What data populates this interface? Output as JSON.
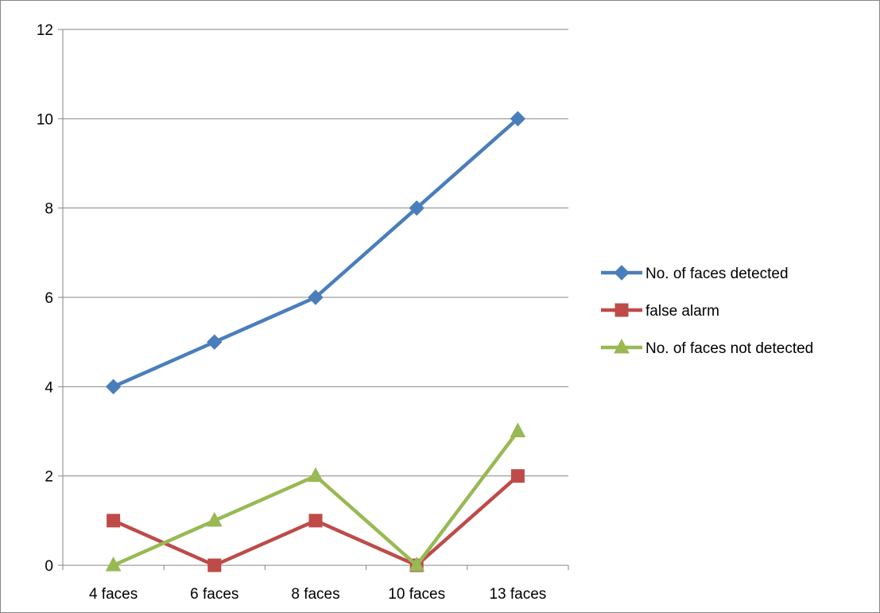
{
  "chart_data": {
    "type": "line",
    "categories": [
      "4 faces",
      "6 faces",
      "8 faces",
      "10 faces",
      "13 faces"
    ],
    "ylim": [
      0,
      12
    ],
    "yticks": [
      0,
      2,
      4,
      6,
      8,
      10,
      12
    ],
    "grid": true,
    "legend_position": "right",
    "series": [
      {
        "name": "No. of faces detected",
        "values": [
          4,
          5,
          6,
          8,
          10
        ],
        "color": "#4A7EBB",
        "marker": "diamond"
      },
      {
        "name": "false alarm",
        "values": [
          1,
          0,
          1,
          0,
          2
        ],
        "color": "#BE4B48",
        "marker": "square"
      },
      {
        "name": "No. of faces not detected",
        "values": [
          0,
          1,
          2,
          0,
          3
        ],
        "color": "#98B954",
        "marker": "triangle"
      }
    ]
  }
}
